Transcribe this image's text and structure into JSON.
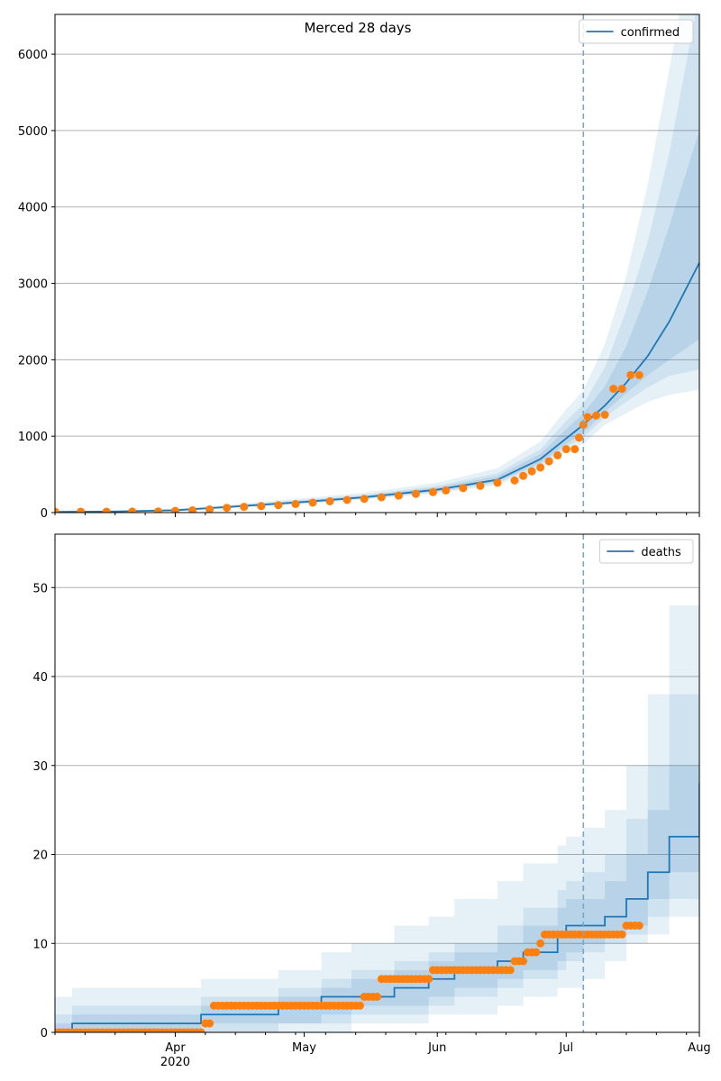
{
  "figure": {
    "title": "Merced 28 days"
  },
  "colors": {
    "model": "#1f77b4",
    "observed": "#ff7f0e",
    "band": "#1f77b4",
    "grid": "#b0b0b0",
    "cutoff": "#7aa6c8"
  },
  "chart_data": [
    {
      "type": "line",
      "name": "confirmed",
      "legend_label": "confirmed",
      "legend_position": "top-right",
      "x_axis": {
        "type": "date",
        "range": [
          "2020-03-04",
          "2020-08-01"
        ],
        "major_ticks": [
          {
            "date": "2020-04-01",
            "label": "Apr",
            "sublabel": "2020"
          },
          {
            "date": "2020-05-01",
            "label": "May",
            "sublabel": ""
          },
          {
            "date": "2020-06-01",
            "label": "Jun",
            "sublabel": ""
          },
          {
            "date": "2020-07-01",
            "label": "Jul",
            "sublabel": ""
          },
          {
            "date": "2020-08-01",
            "label": "Aug",
            "sublabel": ""
          }
        ],
        "tick_labels_shown": false
      },
      "y_axis": {
        "range": [
          0,
          6520
        ],
        "ticks": [
          0,
          1000,
          2000,
          3000,
          4000,
          5000,
          6000
        ],
        "grid": true
      },
      "forecast_start": "2020-07-05",
      "model": {
        "dates": [
          "2020-03-04",
          "2020-03-18",
          "2020-04-01",
          "2020-04-15",
          "2020-05-01",
          "2020-05-15",
          "2020-06-01",
          "2020-06-15",
          "2020-06-25",
          "2020-07-01",
          "2020-07-05",
          "2020-07-10",
          "2020-07-15",
          "2020-07-20",
          "2020-07-25",
          "2020-08-01"
        ],
        "values": [
          10,
          15,
          30,
          80,
          140,
          200,
          300,
          430,
          700,
          970,
          1150,
          1400,
          1700,
          2050,
          2500,
          3270
        ]
      },
      "bands": [
        {
          "lower": [
            5,
            8,
            20,
            60,
            110,
            170,
            250,
            360,
            580,
            800,
            900,
            1150,
            1300,
            1450,
            1540,
            1610
          ],
          "upper": [
            20,
            25,
            50,
            110,
            190,
            260,
            390,
            580,
            930,
            1350,
            1600,
            2200,
            3100,
            4300,
            5800,
            8000
          ]
        },
        {
          "lower": [
            7,
            10,
            24,
            66,
            118,
            180,
            265,
            385,
            620,
            860,
            980,
            1250,
            1450,
            1640,
            1790,
            1870
          ],
          "upper": [
            16,
            20,
            40,
            98,
            170,
            235,
            350,
            515,
            830,
            1200,
            1420,
            1900,
            2650,
            3550,
            4700,
            6800
          ]
        },
        {
          "lower": [
            8,
            12,
            26,
            70,
            125,
            188,
            278,
            405,
            650,
            900,
            1040,
            1320,
            1560,
            1800,
            2000,
            2270
          ],
          "upper": [
            13,
            18,
            35,
            90,
            158,
            220,
            330,
            475,
            770,
            1090,
            1300,
            1650,
            2180,
            2900,
            3750,
            5000
          ]
        }
      ],
      "observed": {
        "points": [
          [
            "2020-03-04",
            12
          ],
          [
            "2020-03-10",
            12
          ],
          [
            "2020-03-16",
            12
          ],
          [
            "2020-03-22",
            13
          ],
          [
            "2020-03-28",
            15
          ],
          [
            "2020-04-01",
            22
          ],
          [
            "2020-04-05",
            30
          ],
          [
            "2020-04-09",
            42
          ],
          [
            "2020-04-13",
            62
          ],
          [
            "2020-04-17",
            75
          ],
          [
            "2020-04-21",
            85
          ],
          [
            "2020-04-25",
            98
          ],
          [
            "2020-04-29",
            112
          ],
          [
            "2020-05-03",
            130
          ],
          [
            "2020-05-07",
            148
          ],
          [
            "2020-05-11",
            165
          ],
          [
            "2020-05-15",
            180
          ],
          [
            "2020-05-19",
            200
          ],
          [
            "2020-05-23",
            222
          ],
          [
            "2020-05-27",
            245
          ],
          [
            "2020-05-31",
            268
          ],
          [
            "2020-06-03",
            290
          ],
          [
            "2020-06-07",
            320
          ],
          [
            "2020-06-11",
            350
          ],
          [
            "2020-06-15",
            390
          ],
          [
            "2020-06-19",
            420
          ],
          [
            "2020-06-21",
            480
          ],
          [
            "2020-06-23",
            540
          ],
          [
            "2020-06-25",
            590
          ],
          [
            "2020-06-27",
            670
          ],
          [
            "2020-06-29",
            750
          ],
          [
            "2020-07-01",
            830
          ],
          [
            "2020-07-03",
            830
          ],
          [
            "2020-07-04",
            980
          ],
          [
            "2020-07-05",
            1150
          ],
          [
            "2020-07-06",
            1250
          ],
          [
            "2020-07-08",
            1270
          ],
          [
            "2020-07-10",
            1280
          ],
          [
            "2020-07-12",
            1620
          ],
          [
            "2020-07-14",
            1620
          ],
          [
            "2020-07-16",
            1800
          ],
          [
            "2020-07-18",
            1800
          ]
        ]
      }
    },
    {
      "type": "line",
      "name": "deaths",
      "legend_label": "deaths",
      "legend_position": "top-right",
      "x_axis": {
        "type": "date",
        "range": [
          "2020-03-04",
          "2020-08-01"
        ],
        "major_ticks": [
          {
            "date": "2020-04-01",
            "label": "Apr",
            "sublabel": "2020"
          },
          {
            "date": "2020-05-01",
            "label": "May",
            "sublabel": ""
          },
          {
            "date": "2020-06-01",
            "label": "Jun",
            "sublabel": ""
          },
          {
            "date": "2020-07-01",
            "label": "Jul",
            "sublabel": ""
          },
          {
            "date": "2020-08-01",
            "label": "Aug",
            "sublabel": ""
          }
        ],
        "tick_labels_shown": true
      },
      "y_axis": {
        "range": [
          0,
          56
        ],
        "ticks": [
          0,
          10,
          20,
          30,
          40,
          50
        ],
        "grid": true
      },
      "forecast_start": "2020-07-05",
      "model": {
        "step": true,
        "dates": [
          "2020-03-04",
          "2020-03-08",
          "2020-04-07",
          "2020-04-25",
          "2020-05-05",
          "2020-05-12",
          "2020-05-22",
          "2020-05-30",
          "2020-06-05",
          "2020-06-15",
          "2020-06-21",
          "2020-06-29",
          "2020-07-01",
          "2020-07-05",
          "2020-07-10",
          "2020-07-15",
          "2020-07-20",
          "2020-07-25",
          "2020-08-01"
        ],
        "values": [
          0,
          1,
          2,
          3,
          4,
          4,
          5,
          6,
          7,
          8,
          9,
          11,
          12,
          12,
          13,
          15,
          18,
          22,
          28
        ]
      },
      "bands": [
        {
          "lower": [
            0,
            0,
            0,
            0,
            0,
            1,
            1,
            2,
            2,
            3,
            4,
            5,
            5,
            6,
            8,
            10,
            11,
            13,
            14
          ],
          "upper": [
            4,
            5,
            6,
            7,
            9,
            10,
            12,
            13,
            15,
            17,
            19,
            21,
            22,
            23,
            25,
            30,
            38,
            48,
            60
          ]
        },
        {
          "lower": [
            0,
            0,
            0,
            1,
            1,
            2,
            2,
            3,
            4,
            5,
            6,
            7,
            8,
            9,
            10,
            11,
            13,
            15,
            17
          ],
          "upper": [
            2,
            3,
            4,
            5,
            6,
            7,
            8,
            9,
            10,
            12,
            14,
            16,
            17,
            18,
            20,
            24,
            30,
            38,
            49
          ]
        },
        {
          "lower": [
            0,
            0,
            1,
            1,
            2,
            3,
            3,
            4,
            5,
            6,
            7,
            8,
            9,
            10,
            11,
            12,
            15,
            18,
            21
          ],
          "upper": [
            1,
            2,
            3,
            4,
            5,
            6,
            7,
            8,
            9,
            10,
            12,
            14,
            15,
            15,
            17,
            20,
            25,
            30,
            37
          ]
        }
      ],
      "observed": {
        "step_segments": [
          [
            "2020-03-04",
            "2020-04-07",
            0
          ],
          [
            "2020-04-08",
            "2020-04-09",
            1
          ],
          [
            "2020-04-10",
            "2020-05-14",
            3
          ],
          [
            "2020-05-15",
            "2020-05-18",
            4
          ],
          [
            "2020-05-19",
            "2020-05-30",
            6
          ],
          [
            "2020-05-31",
            "2020-06-18",
            7
          ],
          [
            "2020-06-19",
            "2020-06-21",
            8
          ],
          [
            "2020-06-22",
            "2020-06-24",
            9
          ],
          [
            "2020-06-25",
            "2020-06-25",
            10
          ],
          [
            "2020-06-26",
            "2020-07-14",
            11
          ],
          [
            "2020-07-15",
            "2020-07-18",
            12
          ]
        ]
      }
    }
  ]
}
